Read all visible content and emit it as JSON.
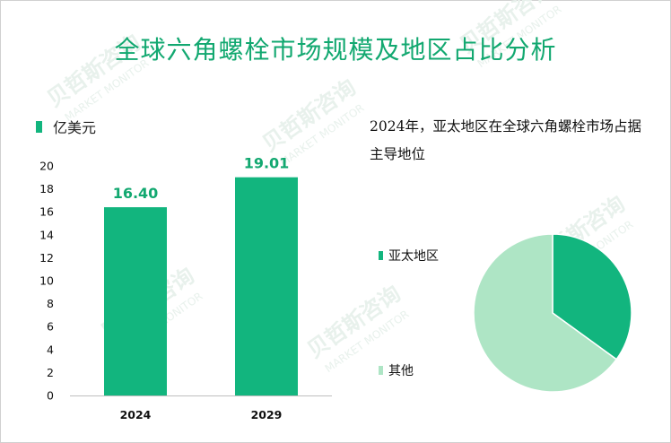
{
  "title": "全球六角螺栓市场规模及地区占比分析",
  "subtitle": "2024年，亚太地区在全球六角螺栓市场占据主导地位",
  "watermark": {
    "cn": "贝哲斯咨询",
    "en": "MARKET MONITOR"
  },
  "colors": {
    "title": "#12a870",
    "bar": "#12b57e",
    "pie_dark": "#12b57e",
    "pie_light": "#aee5c5",
    "watermark": "#e8f1ec"
  },
  "chart_data": [
    {
      "type": "bar",
      "legend": "亿美元",
      "categories": [
        "2024",
        "2029"
      ],
      "values": [
        16.4,
        19.01
      ],
      "value_labels": [
        "16.40",
        "19.01"
      ],
      "ylim": [
        0,
        20
      ],
      "yticks": [
        0,
        2,
        4,
        6,
        8,
        10,
        12,
        14,
        16,
        18,
        20
      ],
      "grid": false
    },
    {
      "type": "pie",
      "labels": [
        "亚太地区",
        "其他"
      ],
      "values": [
        35,
        65
      ],
      "colors": [
        "#12b57e",
        "#aee5c5"
      ],
      "legend_position": "left"
    }
  ]
}
